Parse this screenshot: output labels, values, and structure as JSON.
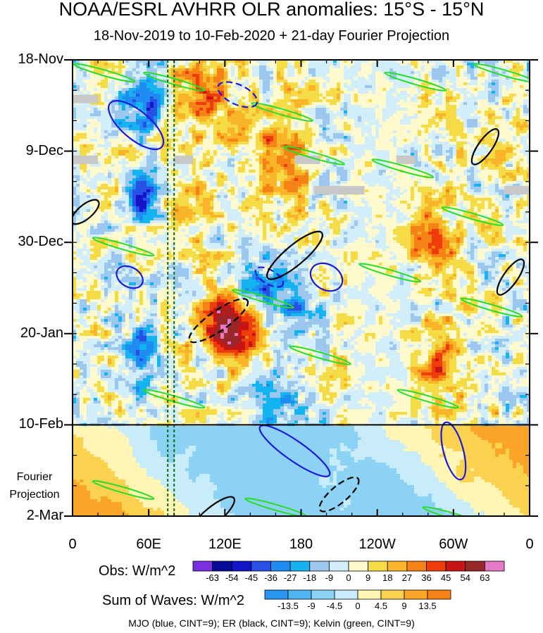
{
  "title": "NOAA/ESRL AVHRR OLR anomalies: 15°S - 15°N",
  "subtitle": "18-Nov-2019 to 10-Feb-2020 + 21-day Fourier Projection",
  "chart_data": {
    "type": "heatmap",
    "x_axis": {
      "ticks": [
        "0",
        "60E",
        "120E",
        "180",
        "120W",
        "60W",
        "0"
      ],
      "range_deg_east": [
        0,
        360
      ]
    },
    "y_axis": {
      "ticks": [
        "18-Nov",
        "9-Dec",
        "30-Dec",
        "20-Jan",
        "10-Feb",
        "2-Mar"
      ],
      "start": "2019-11-18",
      "end": "2020-03-02"
    },
    "projection_label": [
      "Fourier",
      "Projection"
    ],
    "observation_end": "10-Feb",
    "obs_colorbar": {
      "title": "Obs: W/m^2",
      "labels": [
        "-63",
        "-54",
        "-45",
        "-36",
        "-27",
        "-18",
        "-9",
        "0",
        "9",
        "18",
        "27",
        "36",
        "45",
        "54",
        "63"
      ],
      "colors": [
        "#7a2fe0",
        "#0a0a9a",
        "#1414c8",
        "#2850e6",
        "#1e8cf0",
        "#14b4f0",
        "#9cc8f0",
        "#d2eefa",
        "#fffacd",
        "#f5dc46",
        "#fab428",
        "#f58214",
        "#f03c0a",
        "#c81414",
        "#962828",
        "#e678c8"
      ]
    },
    "waves_colorbar": {
      "title": "Sum of Waves: W/m^2",
      "labels": [
        "-13.5",
        "-9",
        "-4.5",
        "0",
        "4.5",
        "9",
        "13.5"
      ],
      "colors": [
        "#2896f0",
        "#50b4f0",
        "#8cd2f5",
        "#c8ecfa",
        "#fff5b4",
        "#fad250",
        "#faa528",
        "#f58214"
      ]
    },
    "contour_legend": "MJO (blue, CINT=9); ER (black, CINT=9); Kelvin (green, CINT=9)",
    "reference_longitudes_deg_east": [
      75,
      80
    ],
    "missing_data_days": [
      {
        "date": "2019-11-27",
        "lon": [
          0,
          20
        ]
      },
      {
        "date": "2019-12-11",
        "lon": [
          0,
          20
        ]
      },
      {
        "date": "2019-12-11",
        "lon": [
          80,
          95
        ]
      },
      {
        "date": "2019-12-11",
        "lon": [
          175,
          195
        ]
      },
      {
        "date": "2019-12-11",
        "lon": [
          255,
          270
        ]
      },
      {
        "date": "2019-12-18",
        "lon": [
          190,
          230
        ]
      },
      {
        "date": "2019-12-18",
        "lon": [
          340,
          360
        ]
      }
    ],
    "colors": {
      "mjo": "#1a1adc",
      "er": "#000000",
      "kelvin": "#28dc28",
      "reference_lines": "#0a6e0a",
      "missing": "#c8c8c8"
    }
  }
}
